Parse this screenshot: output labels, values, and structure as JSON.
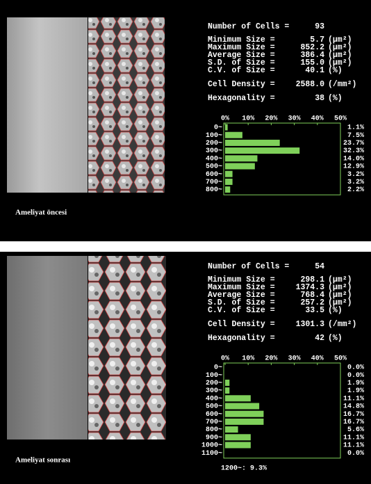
{
  "panels": [
    {
      "caption": "Ameliyat öncesi",
      "stats": [
        {
          "label": "Number of Cells =",
          "value": "93",
          "unit": "",
          "color": "#ffffff"
        },
        {
          "label": "Minimum Size =",
          "value": "5.7",
          "unit": "(µm²)",
          "color": "#ffffff"
        },
        {
          "label": "Maximum Size =",
          "value": "852.2",
          "unit": "(µm²)",
          "color": "#ffffff"
        },
        {
          "label": "Average Size =",
          "value": "386.4",
          "unit": "(µm²)",
          "color": "#ffffff"
        },
        {
          "label": "S.D. of Size =",
          "value": "155.0",
          "unit": "(µm²)",
          "color": "#ffffff"
        },
        {
          "label": "C.V. of Size =",
          "value": "40.1",
          "unit": "(%)",
          "color": "#ffffff"
        },
        {
          "label": "Cell Density =",
          "value": "2588.0",
          "unit": "(/mm²)",
          "color": "#7fd8e8"
        },
        {
          "label": "Hexagonality =",
          "value": "38",
          "unit": "(%)",
          "color": "#f0e890"
        }
      ],
      "histogram": {
        "type": "bar",
        "color": "#7fd05a",
        "categories": [
          "0~",
          "100~",
          "200~",
          "300~",
          "400~",
          "500~",
          "600~",
          "700~",
          "800~"
        ],
        "values": [
          1.1,
          7.5,
          23.7,
          32.3,
          14.0,
          12.9,
          3.2,
          3.2,
          2.2
        ],
        "value_labels": [
          "1.1%",
          "7.5%",
          "23.7%",
          "32.3%",
          "14.0%",
          "12.9%",
          "3.2%",
          "3.2%",
          "2.2%"
        ],
        "xlim": [
          0,
          50
        ],
        "xticks": [
          {
            "value": 0,
            "label": "0%"
          },
          {
            "value": 10,
            "label": "10%"
          },
          {
            "value": 20,
            "label": "20%"
          },
          {
            "value": 30,
            "label": "30%"
          },
          {
            "value": 40,
            "label": "40%"
          },
          {
            "value": 50,
            "label": "50%"
          }
        ]
      }
    },
    {
      "caption": "Ameliyat sonrası",
      "stats": [
        {
          "label": "Number of Cells =",
          "value": "54",
          "unit": "",
          "color": "#ffffff"
        },
        {
          "label": "Minimum Size =",
          "value": "298.1",
          "unit": "(µm²)",
          "color": "#ffffff"
        },
        {
          "label": "Maximum Size =",
          "value": "1374.3",
          "unit": "(µm²)",
          "color": "#ffffff"
        },
        {
          "label": "Average Size =",
          "value": "768.4",
          "unit": "(µm²)",
          "color": "#ffffff"
        },
        {
          "label": "S.D. of Size =",
          "value": "257.2",
          "unit": "(µm²)",
          "color": "#ffffff"
        },
        {
          "label": "C.V. of Size =",
          "value": "33.5",
          "unit": "(%)",
          "color": "#ffffff"
        },
        {
          "label": "Cell Density =",
          "value": "1301.3",
          "unit": "(/mm²)",
          "color": "#7fd8e8"
        },
        {
          "label": "Hexagonality =",
          "value": "42",
          "unit": "(%)",
          "color": "#f0e890"
        }
      ],
      "histogram": {
        "type": "bar",
        "color": "#7fd05a",
        "categories": [
          "0~",
          "100~",
          "200~",
          "300~",
          "400~",
          "500~",
          "600~",
          "700~",
          "800~",
          "900~",
          "1000~",
          "1100~"
        ],
        "values": [
          0.0,
          0.0,
          1.9,
          1.9,
          11.1,
          14.8,
          16.7,
          16.7,
          5.6,
          11.1,
          11.1,
          0.0
        ],
        "value_labels": [
          "0.0%",
          "0.0%",
          "1.9%",
          "1.9%",
          "11.1%",
          "14.8%",
          "16.7%",
          "16.7%",
          "5.6%",
          "11.1%",
          "11.1%",
          "0.0%"
        ],
        "xlim": [
          0,
          50
        ],
        "xticks": [
          {
            "value": 0,
            "label": "0%"
          },
          {
            "value": 10,
            "label": "10%"
          },
          {
            "value": 20,
            "label": "20%"
          },
          {
            "value": 30,
            "label": "30%"
          },
          {
            "value": 40,
            "label": "40%"
          },
          {
            "value": 50,
            "label": "50%"
          }
        ],
        "footer": "1200~: 9.3%"
      }
    }
  ]
}
